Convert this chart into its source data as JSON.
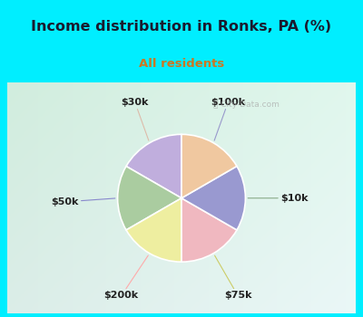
{
  "title": "Income distribution in Ronks, PA (%)",
  "subtitle": "All residents",
  "title_color": "#1a1a2e",
  "subtitle_color": "#cc7722",
  "top_bg_color": "#00EEFF",
  "chart_bg_top_left": "#d0ede0",
  "chart_bg_bottom_right": "#e8f8f0",
  "labels": [
    "$100k",
    "$10k",
    "$75k",
    "$200k",
    "$50k",
    "$30k"
  ],
  "sizes": [
    16.67,
    16.67,
    16.67,
    16.67,
    16.67,
    16.65
  ],
  "colors": [
    "#c0aedd",
    "#aacca0",
    "#eeeea0",
    "#f0b8c0",
    "#9999d0",
    "#f0c8a0"
  ],
  "startangle": 90,
  "wedge_edge_color": "#ffffff",
  "label_color": "#222222",
  "line_colors": [
    "#9999cc",
    "#aabbaa",
    "#cccc88",
    "#ffaaaa",
    "#8888cc",
    "#ddbbaa"
  ]
}
